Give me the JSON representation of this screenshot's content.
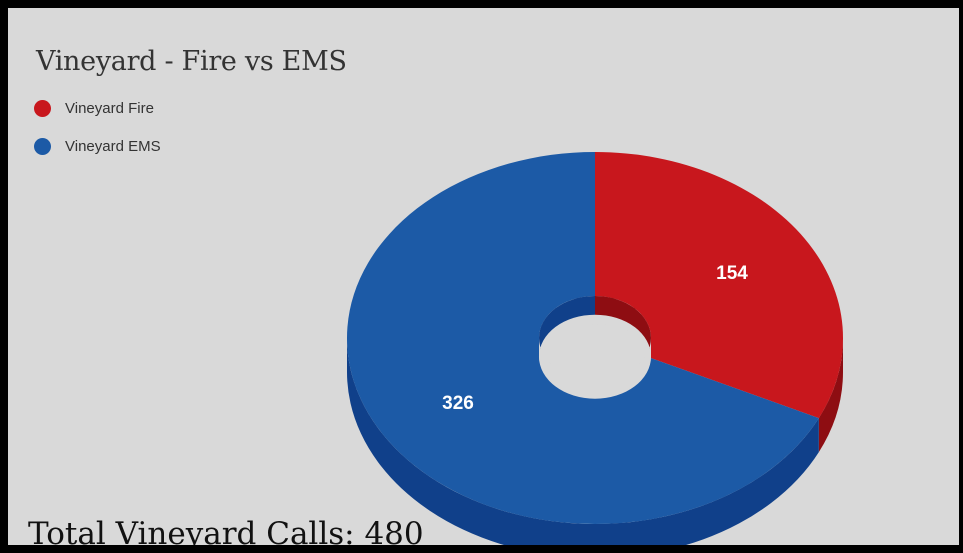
{
  "chart_data": {
    "type": "pie",
    "style": "3d-donut",
    "title": "Vineyard - Fire vs EMS",
    "legend_position": "top-left",
    "slices": [
      {
        "label": "Vineyard Fire",
        "value": 154,
        "color": "#c8171d",
        "side_color": "#8e0d12"
      },
      {
        "label": "Vineyard EMS",
        "value": 326,
        "color": "#1c5aa6",
        "side_color": "#10408a"
      }
    ]
  },
  "background_color": "#d9d9d9",
  "footer": {
    "total_text": "Total Vineyard Calls: 480"
  }
}
